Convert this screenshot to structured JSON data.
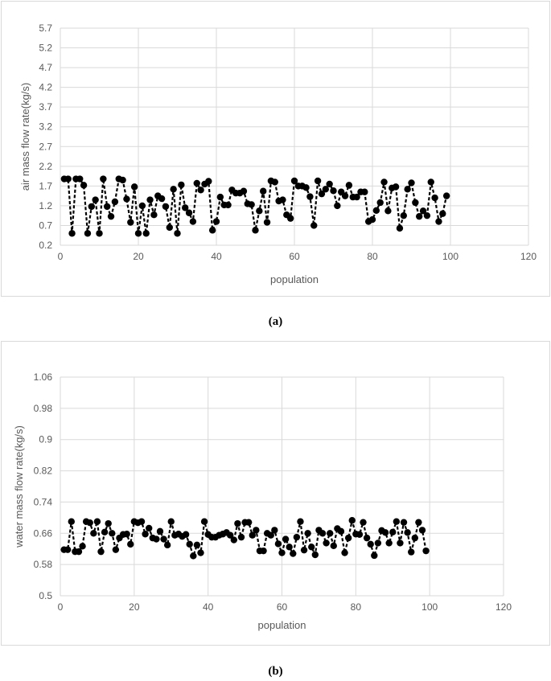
{
  "colors": {
    "grid": "#d9d9d9",
    "axis_text": "#595959",
    "series": "#000000"
  },
  "captions": {
    "a": "(a)",
    "b": "(b)"
  },
  "chart_data": [
    {
      "type": "line",
      "xlabel": "population",
      "ylabel": "air mass flow rate(kg/s)",
      "xlim": [
        0,
        120
      ],
      "ylim": [
        0.2,
        5.7
      ],
      "x_ticks": [
        0,
        20,
        40,
        60,
        80,
        100,
        120
      ],
      "y_ticks": [
        0.2,
        0.7,
        1.2,
        1.7,
        2.2,
        2.7,
        3.2,
        3.7,
        4.2,
        4.7,
        5.2,
        5.7
      ],
      "x_tick_labels": [
        "0",
        "20",
        "40",
        "60",
        "80",
        "100",
        "120"
      ],
      "y_tick_labels": [
        "0.2",
        "0.7",
        "1.2",
        "1.7",
        "2.2",
        "2.7",
        "3.2",
        "3.7",
        "4.2",
        "4.7",
        "5.2",
        "5.7"
      ],
      "grid": true,
      "line_style": "dashed",
      "marker": "circle",
      "x": [
        1,
        2,
        3,
        4,
        5,
        6,
        7,
        8,
        9,
        10,
        11,
        12,
        13,
        14,
        15,
        16,
        17,
        18,
        19,
        20,
        21,
        22,
        23,
        24,
        25,
        26,
        27,
        28,
        29,
        30,
        31,
        32,
        33,
        34,
        35,
        36,
        37,
        38,
        39,
        40,
        41,
        42,
        43,
        44,
        45,
        46,
        47,
        48,
        49,
        50,
        51,
        52,
        53,
        54,
        55,
        56,
        57,
        58,
        59,
        60,
        61,
        62,
        63,
        64,
        65,
        66,
        67,
        68,
        69,
        70,
        71,
        72,
        73,
        74,
        75,
        76,
        77,
        78,
        79,
        80,
        81,
        82,
        83,
        84,
        85,
        86,
        87,
        88,
        89,
        90,
        91,
        92,
        93,
        94,
        95,
        96,
        97,
        98,
        99
      ],
      "values": [
        1.88,
        1.88,
        0.5,
        1.88,
        1.88,
        1.72,
        0.5,
        1.18,
        1.35,
        0.5,
        1.88,
        1.18,
        0.93,
        1.3,
        1.88,
        1.85,
        1.37,
        0.78,
        1.68,
        0.5,
        1.2,
        0.5,
        1.35,
        0.97,
        1.45,
        1.38,
        1.18,
        0.65,
        1.62,
        0.5,
        1.73,
        1.15,
        1.02,
        0.8,
        1.77,
        1.6,
        1.75,
        1.82,
        0.58,
        0.8,
        1.42,
        1.22,
        1.22,
        1.6,
        1.52,
        1.52,
        1.57,
        1.25,
        1.23,
        0.58,
        1.07,
        1.57,
        0.78,
        1.83,
        1.8,
        1.32,
        1.35,
        0.97,
        0.88,
        1.83,
        1.7,
        1.7,
        1.66,
        1.43,
        0.7,
        1.83,
        1.5,
        1.62,
        1.75,
        1.58,
        1.2,
        1.55,
        1.45,
        1.72,
        1.42,
        1.42,
        1.55,
        1.55,
        0.8,
        0.85,
        1.08,
        1.28,
        1.8,
        1.07,
        1.65,
        1.68,
        0.63,
        0.95,
        1.62,
        1.78,
        1.28,
        0.93,
        1.07,
        0.95,
        1.8,
        1.4,
        0.8,
        1.0,
        1.45
      ]
    },
    {
      "type": "line",
      "xlabel": "population",
      "ylabel": "water mass flow rate(kg/s)",
      "xlim": [
        0,
        120
      ],
      "ylim": [
        0.5,
        1.06
      ],
      "x_ticks": [
        0,
        20,
        40,
        60,
        80,
        100,
        120
      ],
      "y_ticks": [
        0.5,
        0.58,
        0.66,
        0.74,
        0.82,
        0.9,
        0.98,
        1.06
      ],
      "x_tick_labels": [
        "0",
        "20",
        "40",
        "60",
        "80",
        "100",
        "120"
      ],
      "y_tick_labels": [
        "0.5",
        "0.58",
        "0.66",
        "0.74",
        "0.82",
        "0.9",
        "0.98",
        "1.06"
      ],
      "grid": true,
      "line_style": "dashed",
      "marker": "circle",
      "x": [
        1,
        2,
        3,
        4,
        5,
        6,
        7,
        8,
        9,
        10,
        11,
        12,
        13,
        14,
        15,
        16,
        17,
        18,
        19,
        20,
        21,
        22,
        23,
        24,
        25,
        26,
        27,
        28,
        29,
        30,
        31,
        32,
        33,
        34,
        35,
        36,
        37,
        38,
        39,
        40,
        41,
        42,
        43,
        44,
        45,
        46,
        47,
        48,
        49,
        50,
        51,
        52,
        53,
        54,
        55,
        56,
        57,
        58,
        59,
        60,
        61,
        62,
        63,
        64,
        65,
        66,
        67,
        68,
        69,
        70,
        71,
        72,
        73,
        74,
        75,
        76,
        77,
        78,
        79,
        80,
        81,
        82,
        83,
        84,
        85,
        86,
        87,
        88,
        89,
        90,
        91,
        92,
        93,
        94,
        95,
        96,
        97,
        98,
        99
      ],
      "values": [
        0.618,
        0.618,
        0.69,
        0.613,
        0.613,
        0.627,
        0.69,
        0.687,
        0.66,
        0.69,
        0.613,
        0.663,
        0.685,
        0.66,
        0.618,
        0.648,
        0.657,
        0.658,
        0.632,
        0.69,
        0.687,
        0.69,
        0.658,
        0.673,
        0.648,
        0.645,
        0.665,
        0.645,
        0.63,
        0.69,
        0.655,
        0.658,
        0.652,
        0.657,
        0.632,
        0.602,
        0.63,
        0.61,
        0.69,
        0.657,
        0.65,
        0.65,
        0.655,
        0.658,
        0.662,
        0.655,
        0.643,
        0.685,
        0.65,
        0.688,
        0.688,
        0.655,
        0.668,
        0.615,
        0.615,
        0.66,
        0.655,
        0.668,
        0.633,
        0.61,
        0.645,
        0.625,
        0.608,
        0.65,
        0.69,
        0.617,
        0.66,
        0.625,
        0.605,
        0.668,
        0.66,
        0.635,
        0.66,
        0.628,
        0.672,
        0.665,
        0.61,
        0.648,
        0.693,
        0.658,
        0.657,
        0.688,
        0.648,
        0.632,
        0.603,
        0.635,
        0.667,
        0.662,
        0.635,
        0.663,
        0.69,
        0.635,
        0.688,
        0.662,
        0.612,
        0.648,
        0.688,
        0.668,
        0.615
      ]
    }
  ]
}
